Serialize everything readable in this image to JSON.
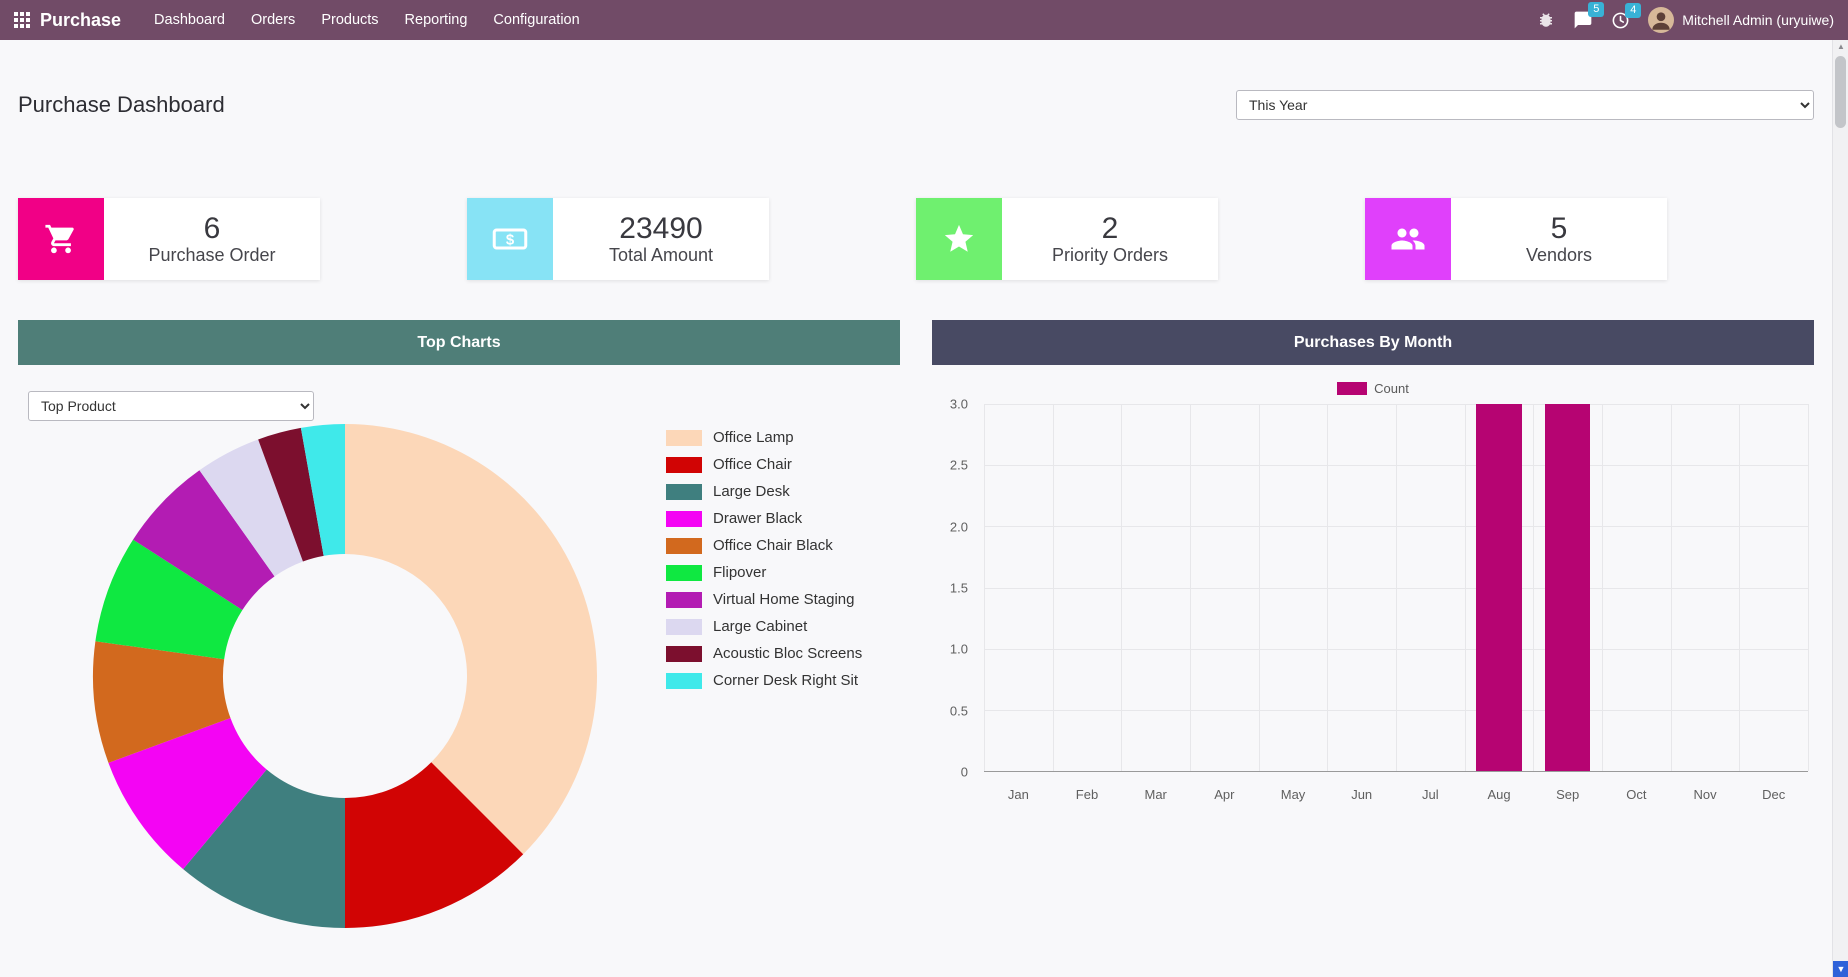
{
  "navbar": {
    "brand": "Purchase",
    "menu": [
      "Dashboard",
      "Orders",
      "Products",
      "Reporting",
      "Configuration"
    ],
    "badges": {
      "messages": "5",
      "activities": "4"
    },
    "user": "Mitchell Admin (uryuiwe)"
  },
  "header": {
    "title": "Purchase Dashboard",
    "period_selected": "This Year"
  },
  "kpis": [
    {
      "value": "6",
      "label": "Purchase Order",
      "icon": "cart-icon",
      "color": "#f10086"
    },
    {
      "value": "23490",
      "label": "Total Amount",
      "icon": "money-icon",
      "color": "#87e3f5"
    },
    {
      "value": "2",
      "label": "Priority Orders",
      "icon": "star-icon",
      "color": "#6ff06f"
    },
    {
      "value": "5",
      "label": "Vendors",
      "icon": "users-icon",
      "color": "#e040fb"
    }
  ],
  "panels": {
    "left": {
      "title": "Top Charts",
      "header_color": "#4f7e78",
      "filter_selected": "Top Product"
    },
    "right": {
      "title": "Purchases By Month",
      "header_color": "#484a63"
    }
  },
  "chart_data": [
    {
      "type": "pie",
      "donut": true,
      "title": "Top Charts",
      "legend_position": "right",
      "labels": [
        "Office Lamp",
        "Office Chair",
        "Large Desk",
        "Drawer Black",
        "Office Chair Black",
        "Flipover",
        "Virtual Home Staging",
        "Large Cabinet",
        "Acoustic Bloc Screens",
        "Corner Desk Right Sit"
      ],
      "values": [
        37.5,
        12.5,
        11.1,
        8.3,
        7.8,
        6.9,
        6.1,
        4.2,
        2.8,
        2.8
      ],
      "colors": [
        "#fcd7b8",
        "#d10404",
        "#3f7f7f",
        "#f404f4",
        "#d2691e",
        "#0fe841",
        "#b31cb3",
        "#dcd8f0",
        "#7c0f2e",
        "#3fe9ea"
      ]
    },
    {
      "type": "bar",
      "title": "Purchases By Month",
      "categories": [
        "Jan",
        "Feb",
        "Mar",
        "Apr",
        "May",
        "Jun",
        "Jul",
        "Aug",
        "Sep",
        "Oct",
        "Nov",
        "Dec"
      ],
      "series": [
        {
          "name": "Count",
          "values": [
            0,
            0,
            0,
            0,
            0,
            0,
            0,
            3,
            3,
            0,
            0,
            0
          ],
          "color": "#b60472"
        }
      ],
      "ylim": [
        0,
        3
      ],
      "yticks": [
        "0",
        "0.5",
        "1.0",
        "1.5",
        "2.0",
        "2.5",
        "3.0"
      ],
      "grid": true,
      "legend_position": "top"
    }
  ]
}
